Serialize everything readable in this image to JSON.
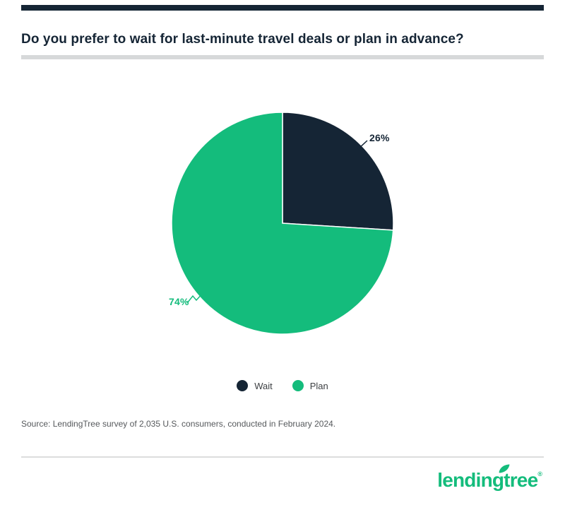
{
  "page": {
    "title": "Do you prefer to wait for last-minute travel deals or plan in advance?",
    "source": "Source: LendingTree survey of 2,035 U.S. consumers, conducted in February 2024.",
    "logo": {
      "text": "lendingtree",
      "registered": "®"
    }
  },
  "colors": {
    "dark_navy": "#152535",
    "green": "#14BC7C",
    "divider_gray": "#d7d9da",
    "source_gray": "#56595c"
  },
  "chart_data": {
    "type": "pie",
    "title": "Do you prefer to wait for last-minute travel deals or plan in advance?",
    "start_angle_deg": -90,
    "direction": "clockwise",
    "legend_position": "bottom",
    "slices": [
      {
        "label": "Wait",
        "value": 26,
        "pct_label": "26%",
        "color": "#152535"
      },
      {
        "label": "Plan",
        "value": 74,
        "pct_label": "74%",
        "color": "#14BC7C"
      }
    ]
  }
}
